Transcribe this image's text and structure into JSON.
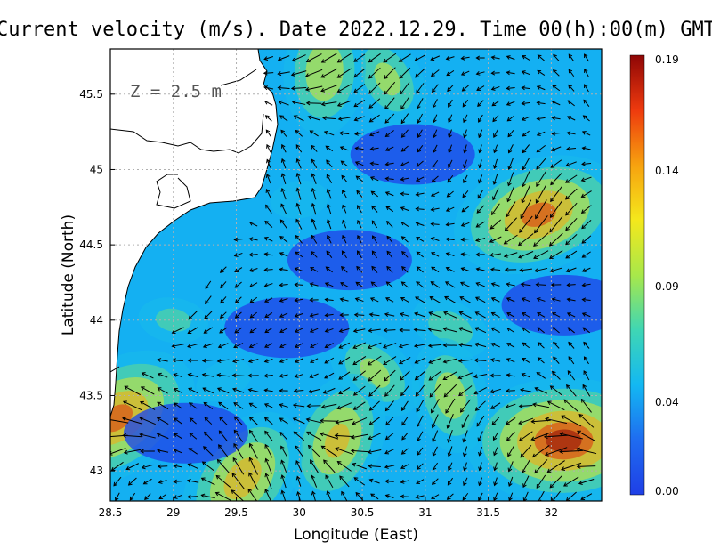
{
  "chart_data": {
    "type": "heatmap",
    "title": "Current velocity (m/s). Date 2022.12.29. Time 00(h):00(m) GMT",
    "xlabel": "Longitude (East)",
    "ylabel": "Latitude (North)",
    "depth_label": "Z = 2.5 m",
    "x_range": [
      28.5,
      32.4
    ],
    "y_range": [
      42.8,
      45.8
    ],
    "x_ticks": [
      "28.5",
      "29",
      "29.5",
      "30",
      "30.5",
      "31",
      "31.5",
      "32"
    ],
    "x_tick_values": [
      28.5,
      29,
      29.5,
      30,
      30.5,
      31,
      31.5,
      32
    ],
    "y_ticks": [
      "43",
      "43.5",
      "44",
      "44.5",
      "45",
      "45.5"
    ],
    "y_tick_values": [
      43,
      43.5,
      44,
      44.5,
      45,
      45.5
    ],
    "colorbar": {
      "min": 0.0,
      "max": 0.19,
      "tick_labels": [
        "0.19",
        "0.14",
        "0.09",
        "0.04",
        "0.00"
      ],
      "tick_values": [
        0.19,
        0.14,
        0.09,
        0.04,
        0.0
      ],
      "colors": [
        "#1f3fe6",
        "#1f6cf0",
        "#13b8f2",
        "#3fd6b4",
        "#a8e84a",
        "#f4e81c",
        "#f7a20f",
        "#ee3a0e",
        "#8e0606"
      ]
    },
    "grid": true,
    "coastline_color": "#000000",
    "land_color": "#ffffff",
    "vector_color": "#000000",
    "hotspots": [
      {
        "lon": 28.55,
        "lat": 43.35,
        "speed": 0.17
      },
      {
        "lon": 29.55,
        "lat": 42.95,
        "speed": 0.15
      },
      {
        "lon": 30.3,
        "lat": 43.2,
        "speed": 0.14
      },
      {
        "lon": 30.6,
        "lat": 43.65,
        "speed": 0.11
      },
      {
        "lon": 31.2,
        "lat": 43.5,
        "speed": 0.12
      },
      {
        "lon": 32.1,
        "lat": 43.2,
        "speed": 0.19
      },
      {
        "lon": 31.9,
        "lat": 44.7,
        "speed": 0.17
      },
      {
        "lon": 31.2,
        "lat": 43.95,
        "speed": 0.09
      },
      {
        "lon": 30.2,
        "lat": 45.65,
        "speed": 0.13
      },
      {
        "lon": 30.7,
        "lat": 45.6,
        "speed": 0.11
      },
      {
        "lon": 29.0,
        "lat": 44.0,
        "speed": 0.08
      },
      {
        "lon": 29.4,
        "lat": 43.6,
        "speed": 0.07
      },
      {
        "lon": 30.0,
        "lat": 44.8,
        "speed": 0.07
      }
    ],
    "calm_zones": [
      {
        "lon": 30.9,
        "lat": 45.1
      },
      {
        "lon": 30.4,
        "lat": 44.4
      },
      {
        "lon": 29.9,
        "lat": 43.95
      },
      {
        "lon": 29.1,
        "lat": 43.25
      },
      {
        "lon": 32.1,
        "lat": 44.1
      }
    ]
  }
}
